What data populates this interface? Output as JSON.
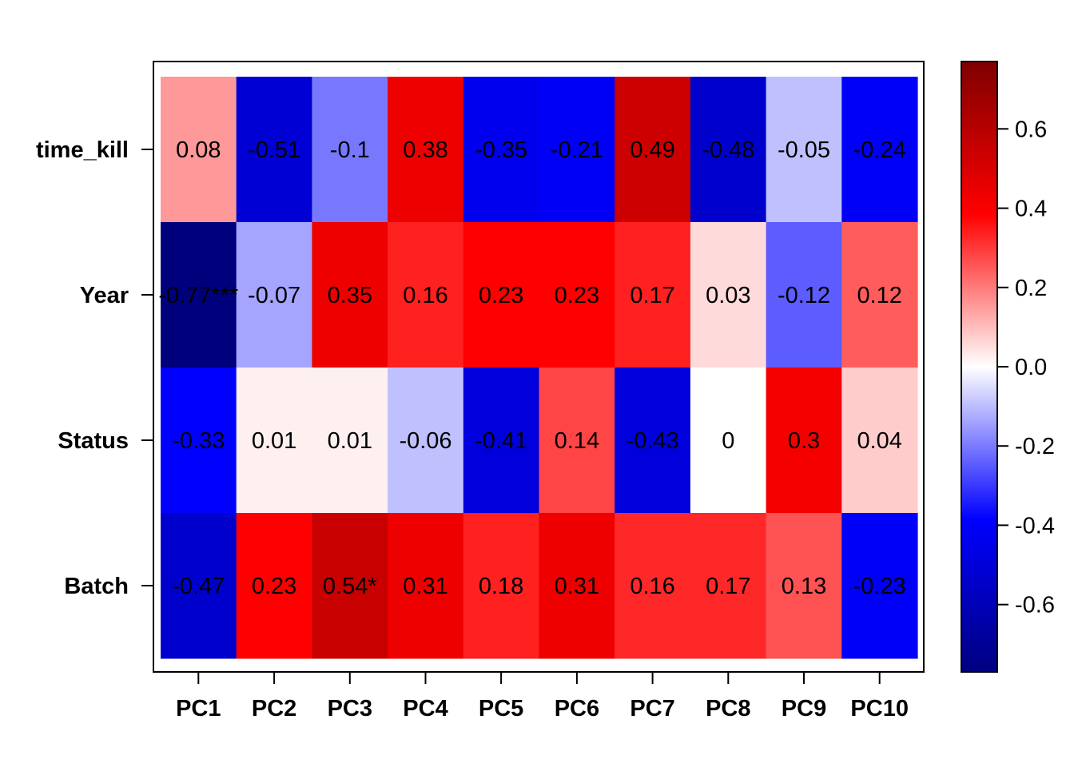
{
  "chart_data": {
    "type": "heatmap",
    "title": "",
    "xlabel": "",
    "ylabel": "",
    "columns": [
      "PC1",
      "PC2",
      "PC3",
      "PC4",
      "PC5",
      "PC6",
      "PC7",
      "PC8",
      "PC9",
      "PC10"
    ],
    "rows": [
      "time_kill",
      "Year",
      "Status",
      "Batch"
    ],
    "values": [
      [
        0.08,
        -0.51,
        -0.1,
        0.38,
        -0.35,
        -0.21,
        0.49,
        -0.48,
        -0.05,
        -0.24
      ],
      [
        -0.77,
        -0.07,
        0.35,
        0.16,
        0.23,
        0.23,
        0.17,
        0.03,
        -0.12,
        0.12
      ],
      [
        -0.33,
        0.01,
        0.01,
        -0.06,
        -0.41,
        0.14,
        -0.43,
        0,
        0.3,
        0.04
      ],
      [
        -0.47,
        0.23,
        0.54,
        0.31,
        0.18,
        0.31,
        0.16,
        0.17,
        0.13,
        -0.23
      ]
    ],
    "cell_labels": [
      [
        "0.08",
        "-0.51",
        "-0.1",
        "0.38",
        "-0.35",
        "-0.21",
        "0.49",
        "-0.48",
        "-0.05",
        "-0.24"
      ],
      [
        "-0.77***",
        "-0.07",
        "0.35",
        "0.16",
        "0.23",
        "0.23",
        "0.17",
        "0.03",
        "-0.12",
        "0.12"
      ],
      [
        "-0.33",
        "0.01",
        "0.01",
        "-0.06",
        "-0.41",
        "0.14",
        "-0.43",
        "0",
        "0.3",
        "0.04"
      ],
      [
        "-0.47",
        "0.23",
        "0.54*",
        "0.31",
        "0.18",
        "0.31",
        "0.16",
        "0.17",
        "0.13",
        "-0.23"
      ]
    ],
    "cell_colors": [
      [
        "#ff9898",
        "#0000d4",
        "#7878ff",
        "#ee0000",
        "#0000ee",
        "#0000f6",
        "#cc0000",
        "#0000cc",
        "#c0c0ff",
        "#0000f8"
      ],
      [
        "#00007c",
        "#a5a5ff",
        "#ee0000",
        "#ff2020",
        "#fe0000",
        "#fe0000",
        "#ff2020",
        "#ffdada",
        "#5c5cff",
        "#ff5c5c"
      ],
      [
        "#0000fe",
        "#fff0f0",
        "#fff0f0",
        "#c0c0ff",
        "#0000dc",
        "#ff4545",
        "#0000dc",
        "#ffffff",
        "#f40000",
        "#ffcccc"
      ],
      [
        "#0000cc",
        "#fe0000",
        "#c80000",
        "#ee0000",
        "#ff2020",
        "#ee0000",
        "#ff2828",
        "#ff2828",
        "#ff5252",
        "#0000f8"
      ]
    ],
    "colorbar": {
      "colors": [
        "#00007f",
        "#0000ff",
        "#ffffff",
        "#ff0000",
        "#7f0000"
      ],
      "range": [
        -0.77,
        0.77
      ],
      "ticks": [
        -0.6,
        -0.4,
        -0.2,
        0.0,
        0.2,
        0.4,
        0.6
      ],
      "tick_labels": [
        "-0.6",
        "-0.4",
        "-0.2",
        "0.0",
        "0.2",
        "0.4",
        "0.6"
      ]
    },
    "grid": false,
    "legend": "right colorbar"
  }
}
